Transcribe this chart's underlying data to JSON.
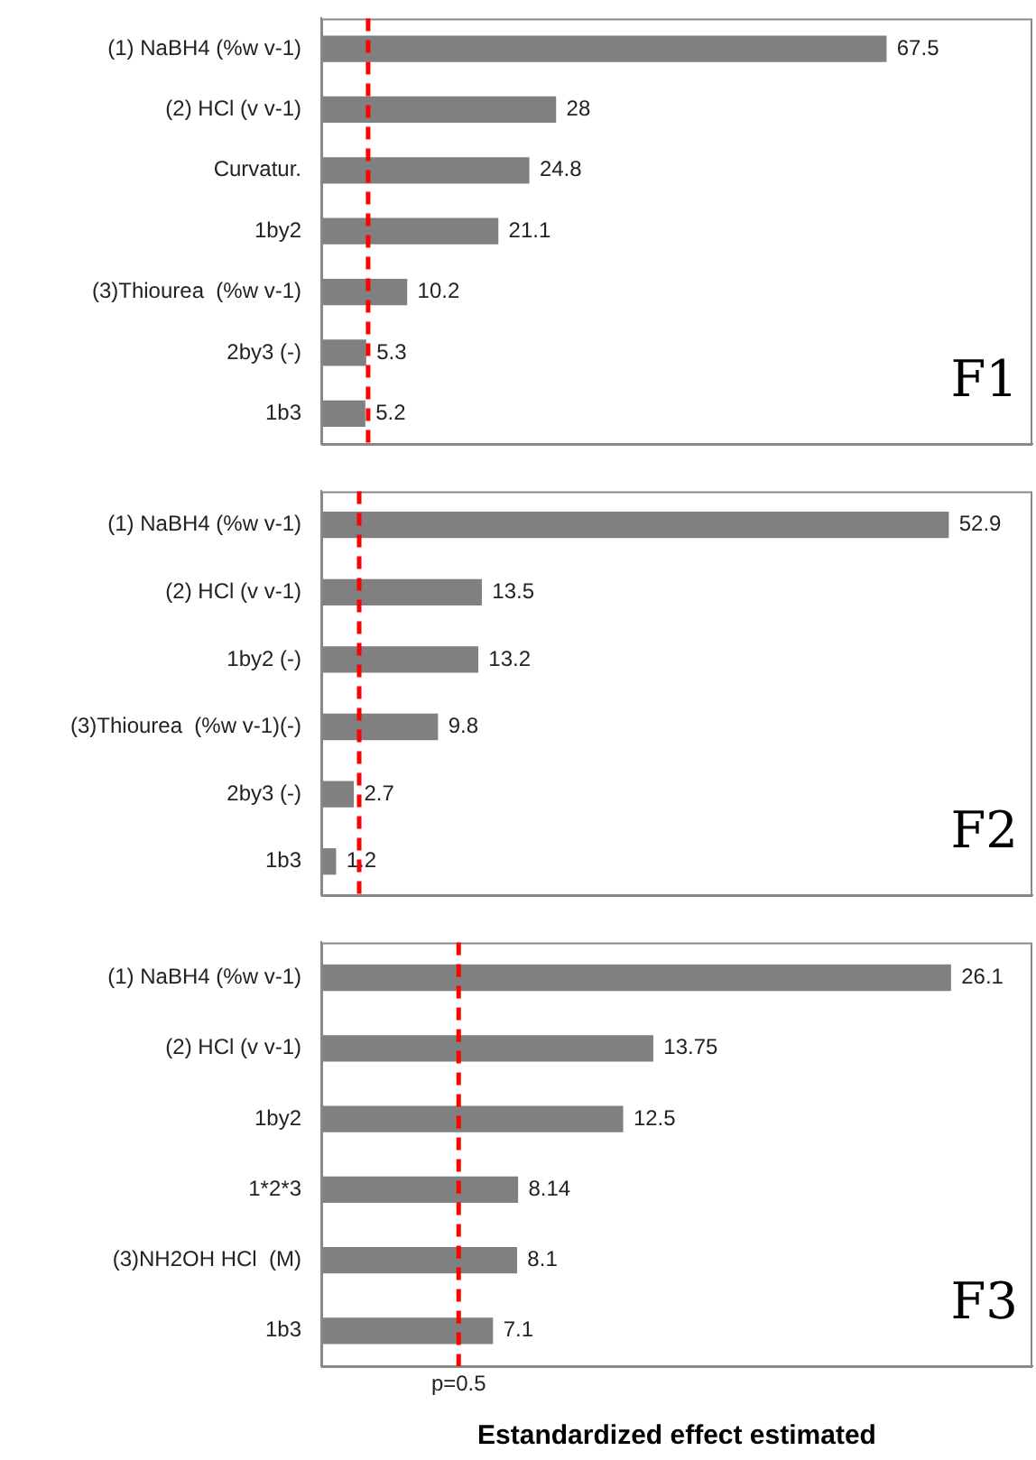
{
  "chart_data": [
    {
      "type": "bar",
      "orientation": "horizontal",
      "categories": [
        "(1) NaBH4 (%w v-1)",
        "(2) HCl (v v-1)",
        "Curvatur.",
        "1by2",
        "(3)Thiourea  (%w v-1)",
        "2by3 (-)",
        "1b3"
      ],
      "values": [
        67.5,
        28,
        24.8,
        21.1,
        10.2,
        5.3,
        5.2
      ],
      "color": "#808080",
      "xlim": [
        0,
        85
      ],
      "data_labels": true,
      "tick_labels": "y",
      "ref_lines": [
        {
          "axis": "x",
          "value": 5.6,
          "color": "#ff0000",
          "line_style": "dashed"
        }
      ],
      "annotations": [
        "F1"
      ]
    },
    {
      "type": "bar",
      "orientation": "horizontal",
      "categories": [
        "(1) NaBH4 (%w v-1)",
        "(2) HCl (v v-1)",
        "1by2 (-)",
        "(3)Thiourea  (%w v-1)(-)",
        "2by3 (-)",
        "1b3"
      ],
      "values": [
        52.9,
        13.5,
        13.2,
        9.8,
        2.7,
        1.2
      ],
      "color": "#808080",
      "xlim": [
        0,
        60
      ],
      "data_labels": true,
      "tick_labels": "y",
      "ref_lines": [
        {
          "axis": "x",
          "value": 3.2,
          "color": "#ff0000",
          "line_style": "dashed"
        }
      ],
      "annotations": [
        "F2"
      ]
    },
    {
      "type": "bar",
      "orientation": "horizontal",
      "categories": [
        "(1) NaBH4 (%w v-1)",
        "(2) HCl (v v-1)",
        "1by2",
        "1*2*3",
        "(3)NH2OH HCl  (M)",
        "1b3"
      ],
      "values": [
        26.1,
        13.75,
        12.5,
        8.14,
        8.1,
        7.1
      ],
      "color": "#808080",
      "xlim": [
        0,
        29.5
      ],
      "data_labels": true,
      "tick_labels": "y",
      "xlabel": "Estandardized effect estimated",
      "ref_lines": [
        {
          "axis": "x",
          "value": 5.7,
          "color": "#ff0000",
          "line_style": "dashed"
        }
      ],
      "annotations": [
        "F3",
        "p=0.5"
      ]
    }
  ]
}
